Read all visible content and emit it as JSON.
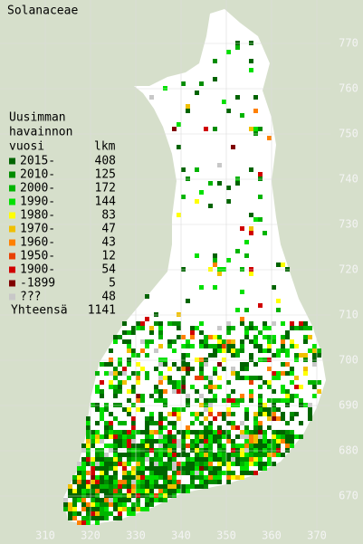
{
  "title": "Solanaceae",
  "legend": {
    "heading": [
      "Uusimman",
      "havainnon",
      "vuosi"
    ],
    "count_heading": "lkm",
    "items": [
      {
        "label": "2015-",
        "count": 408,
        "color": "#006400"
      },
      {
        "label": "2010-",
        "count": 125,
        "color": "#008c00"
      },
      {
        "label": "2000-",
        "count": 172,
        "color": "#00b400"
      },
      {
        "label": "1990-",
        "count": 144,
        "color": "#00e000"
      },
      {
        "label": "1980-",
        "count": 83,
        "color": "#ffff00"
      },
      {
        "label": "1970-",
        "count": 47,
        "color": "#f0c000"
      },
      {
        "label": "1960-",
        "count": 43,
        "color": "#ff8000"
      },
      {
        "label": "1950-",
        "count": 12,
        "color": "#e84000"
      },
      {
        "label": "1900-",
        "count": 54,
        "color": "#d00000"
      },
      {
        "label": "-1899",
        "count": 5,
        "color": "#800000"
      },
      {
        "label": "???",
        "count": 48,
        "color": "#c8c8c8"
      }
    ],
    "total_label": "Yhteensä",
    "total": 1141
  },
  "xticks": [
    310,
    320,
    330,
    340,
    350,
    360,
    370
  ],
  "yticks": [
    670,
    680,
    690,
    700,
    710,
    720,
    730,
    740,
    750,
    760,
    770
  ]
}
